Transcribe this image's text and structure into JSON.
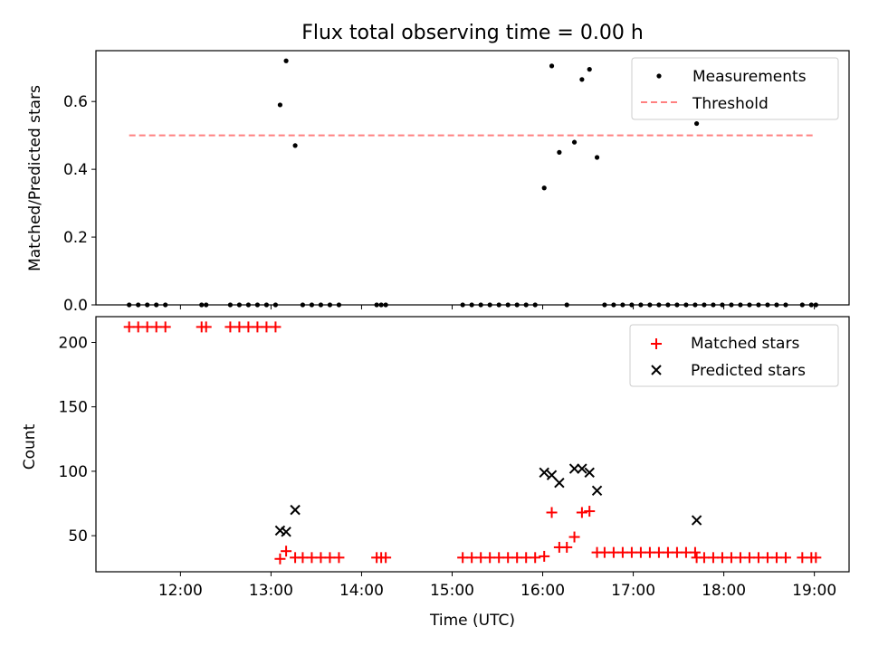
{
  "chart_data": [
    {
      "type": "scatter",
      "title": "Flux total observing time = 0.00 h",
      "xlabel": "",
      "ylabel": "Matched/Predicted stars",
      "xlim": [
        "11:04",
        "19:23"
      ],
      "ylim": [
        0,
        0.75
      ],
      "yticks": [
        0.0,
        0.2,
        0.4,
        0.6
      ],
      "ytick_labels": [
        "0.0",
        "0.2",
        "0.4",
        "0.6"
      ],
      "grid": false,
      "legend_position": "top-right",
      "series": [
        {
          "name": "Measurements",
          "marker": "dot",
          "color": "#000000",
          "points": [
            [
              "11:26",
              0
            ],
            [
              "11:32",
              0
            ],
            [
              "11:38",
              0
            ],
            [
              "11:44",
              0
            ],
            [
              "11:50",
              0
            ],
            [
              "12:14",
              0
            ],
            [
              "12:17",
              0
            ],
            [
              "12:33",
              0
            ],
            [
              "12:39",
              0
            ],
            [
              "12:45",
              0
            ],
            [
              "12:51",
              0
            ],
            [
              "12:57",
              0
            ],
            [
              "13:03",
              0
            ],
            [
              "13:06",
              0.59
            ],
            [
              "13:10",
              0.72
            ],
            [
              "13:16",
              0.47
            ],
            [
              "13:21",
              0
            ],
            [
              "13:27",
              0
            ],
            [
              "13:33",
              0
            ],
            [
              "13:39",
              0
            ],
            [
              "13:45",
              0
            ],
            [
              "14:10",
              0
            ],
            [
              "14:13",
              0
            ],
            [
              "14:16",
              0
            ],
            [
              "15:07",
              0
            ],
            [
              "15:13",
              0
            ],
            [
              "15:19",
              0
            ],
            [
              "15:25",
              0
            ],
            [
              "15:31",
              0
            ],
            [
              "15:37",
              0
            ],
            [
              "15:43",
              0
            ],
            [
              "15:49",
              0
            ],
            [
              "15:55",
              0
            ],
            [
              "16:01",
              0.345
            ],
            [
              "16:06",
              0.705
            ],
            [
              "16:11",
              0.45
            ],
            [
              "16:16",
              0
            ],
            [
              "16:21",
              0.48
            ],
            [
              "16:26",
              0.665
            ],
            [
              "16:31",
              0.695
            ],
            [
              "16:36",
              0.435
            ],
            [
              "16:41",
              0
            ],
            [
              "16:47",
              0
            ],
            [
              "16:53",
              0
            ],
            [
              "16:59",
              0
            ],
            [
              "17:05",
              0
            ],
            [
              "17:11",
              0
            ],
            [
              "17:17",
              0
            ],
            [
              "17:23",
              0
            ],
            [
              "17:29",
              0
            ],
            [
              "17:35",
              0
            ],
            [
              "17:41",
              0
            ],
            [
              "17:42",
              0.535
            ],
            [
              "17:47",
              0
            ],
            [
              "17:53",
              0
            ],
            [
              "17:59",
              0
            ],
            [
              "18:05",
              0
            ],
            [
              "18:11",
              0
            ],
            [
              "18:17",
              0
            ],
            [
              "18:23",
              0
            ],
            [
              "18:29",
              0
            ],
            [
              "18:35",
              0
            ],
            [
              "18:41",
              0
            ],
            [
              "18:52",
              0
            ],
            [
              "18:58",
              0
            ],
            [
              "19:01",
              0
            ]
          ]
        },
        {
          "name": "Threshold",
          "marker": "dashed-line",
          "color": "#ff8080",
          "points": [
            [
              "11:26",
              0.5
            ],
            [
              "19:01",
              0.5
            ]
          ]
        }
      ]
    },
    {
      "type": "scatter",
      "title": "",
      "xlabel": "Time (UTC)",
      "ylabel": "Count",
      "xlim": [
        "11:04",
        "19:23"
      ],
      "ylim": [
        22,
        220
      ],
      "yticks": [
        50,
        100,
        150,
        200
      ],
      "ytick_labels": [
        "50",
        "100",
        "150",
        "200"
      ],
      "xticks": [
        "12:00",
        "13:00",
        "14:00",
        "15:00",
        "16:00",
        "17:00",
        "18:00",
        "19:00"
      ],
      "grid": false,
      "legend_position": "top-right",
      "series": [
        {
          "name": "Matched stars",
          "marker": "plus",
          "color": "#ff0000",
          "points": [
            [
              "11:26",
              212
            ],
            [
              "11:32",
              212
            ],
            [
              "11:38",
              212
            ],
            [
              "11:44",
              212
            ],
            [
              "11:50",
              212
            ],
            [
              "12:14",
              212
            ],
            [
              "12:17",
              212
            ],
            [
              "12:33",
              212
            ],
            [
              "12:39",
              212
            ],
            [
              "12:45",
              212
            ],
            [
              "12:51",
              212
            ],
            [
              "12:57",
              212
            ],
            [
              "13:03",
              212
            ],
            [
              "13:06",
              32
            ],
            [
              "13:10",
              38
            ],
            [
              "13:16",
              33
            ],
            [
              "13:21",
              33
            ],
            [
              "13:27",
              33
            ],
            [
              "13:33",
              33
            ],
            [
              "13:39",
              33
            ],
            [
              "13:45",
              33
            ],
            [
              "14:10",
              33
            ],
            [
              "14:13",
              33
            ],
            [
              "14:16",
              33
            ],
            [
              "15:07",
              33
            ],
            [
              "15:13",
              33
            ],
            [
              "15:19",
              33
            ],
            [
              "15:25",
              33
            ],
            [
              "15:31",
              33
            ],
            [
              "15:37",
              33
            ],
            [
              "15:43",
              33
            ],
            [
              "15:49",
              33
            ],
            [
              "15:55",
              33
            ],
            [
              "16:01",
              34
            ],
            [
              "16:06",
              68
            ],
            [
              "16:11",
              41
            ],
            [
              "16:16",
              41
            ],
            [
              "16:21",
              49
            ],
            [
              "16:26",
              68
            ],
            [
              "16:31",
              69
            ],
            [
              "16:36",
              37
            ],
            [
              "16:41",
              37
            ],
            [
              "16:47",
              37
            ],
            [
              "16:53",
              37
            ],
            [
              "16:59",
              37
            ],
            [
              "17:05",
              37
            ],
            [
              "17:11",
              37
            ],
            [
              "17:17",
              37
            ],
            [
              "17:23",
              37
            ],
            [
              "17:29",
              37
            ],
            [
              "17:35",
              37
            ],
            [
              "17:41",
              37
            ],
            [
              "17:42",
              33
            ],
            [
              "17:47",
              33
            ],
            [
              "17:53",
              33
            ],
            [
              "17:59",
              33
            ],
            [
              "18:05",
              33
            ],
            [
              "18:11",
              33
            ],
            [
              "18:17",
              33
            ],
            [
              "18:23",
              33
            ],
            [
              "18:29",
              33
            ],
            [
              "18:35",
              33
            ],
            [
              "18:41",
              33
            ],
            [
              "18:52",
              33
            ],
            [
              "18:58",
              33
            ],
            [
              "19:01",
              33
            ]
          ]
        },
        {
          "name": "Predicted stars",
          "marker": "x",
          "color": "#000000",
          "points": [
            [
              "13:06",
              54
            ],
            [
              "13:10",
              53
            ],
            [
              "13:16",
              70
            ],
            [
              "16:01",
              99
            ],
            [
              "16:06",
              97
            ],
            [
              "16:11",
              91
            ],
            [
              "16:21",
              102
            ],
            [
              "16:26",
              102
            ],
            [
              "16:31",
              99
            ],
            [
              "16:36",
              85
            ],
            [
              "17:42",
              62
            ]
          ]
        }
      ]
    }
  ]
}
